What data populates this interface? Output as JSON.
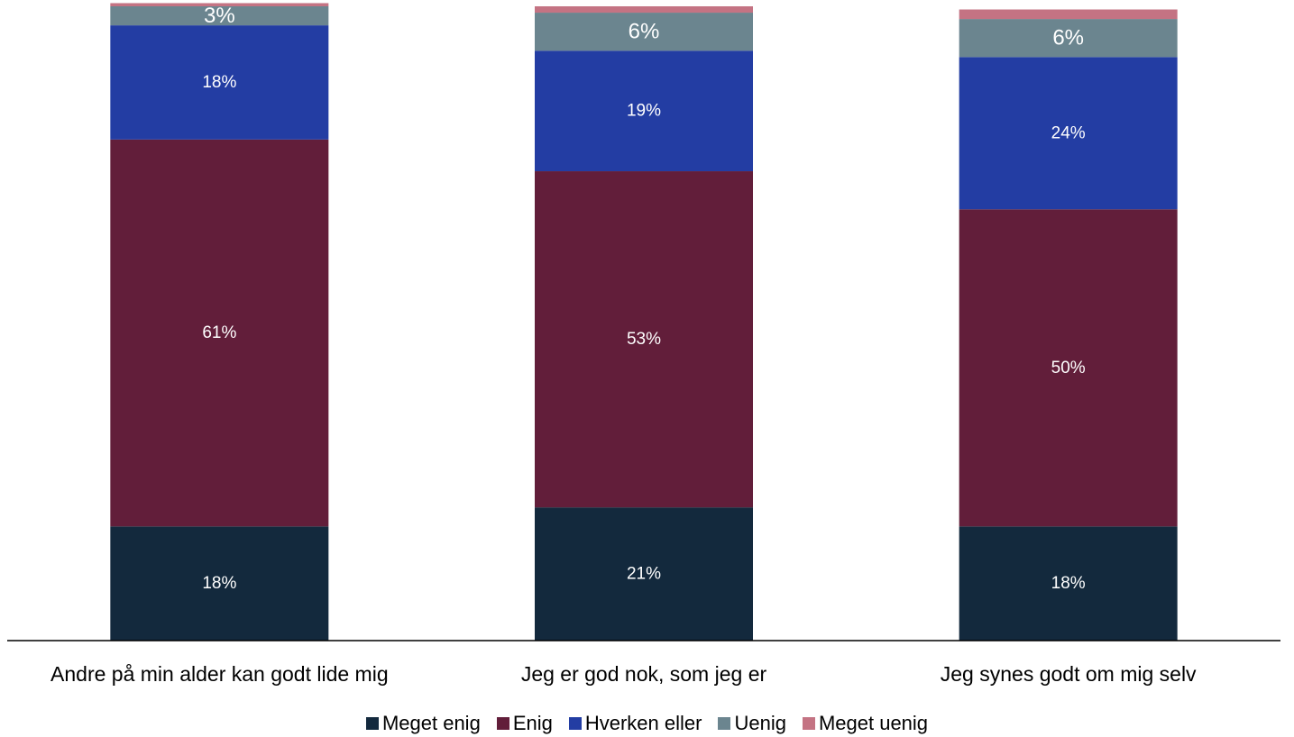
{
  "chart_data": {
    "type": "bar",
    "stacked": true,
    "categories": [
      "Andre på min alder kan godt lide mig",
      "Jeg er god nok, som jeg er",
      "Jeg synes godt om mig selv"
    ],
    "series": [
      {
        "name": "Meget enig",
        "color": "#13293d",
        "values": [
          18,
          21,
          18
        ],
        "labels": [
          "18%",
          "21%",
          "18%"
        ]
      },
      {
        "name": "Enig",
        "color": "#621e3a",
        "values": [
          61,
          53,
          50
        ],
        "labels": [
          "61%",
          "53%",
          "50%"
        ]
      },
      {
        "name": "Hverken eller",
        "color": "#233da3",
        "values": [
          18,
          19,
          24
        ],
        "labels": [
          "18%",
          "19%",
          "24%"
        ]
      },
      {
        "name": "Uenig",
        "color": "#6b858f",
        "values": [
          3,
          6,
          6
        ],
        "labels": [
          "3%",
          "6%",
          "6%"
        ]
      },
      {
        "name": "Meget uenig",
        "color": "#c47383",
        "values": [
          0.5,
          1,
          1.5
        ],
        "labels": [
          "",
          "",
          ""
        ]
      }
    ],
    "title": "",
    "xlabel": "",
    "ylabel": "",
    "ylim": [
      0,
      100
    ],
    "grid": false,
    "legend_position": "bottom"
  }
}
